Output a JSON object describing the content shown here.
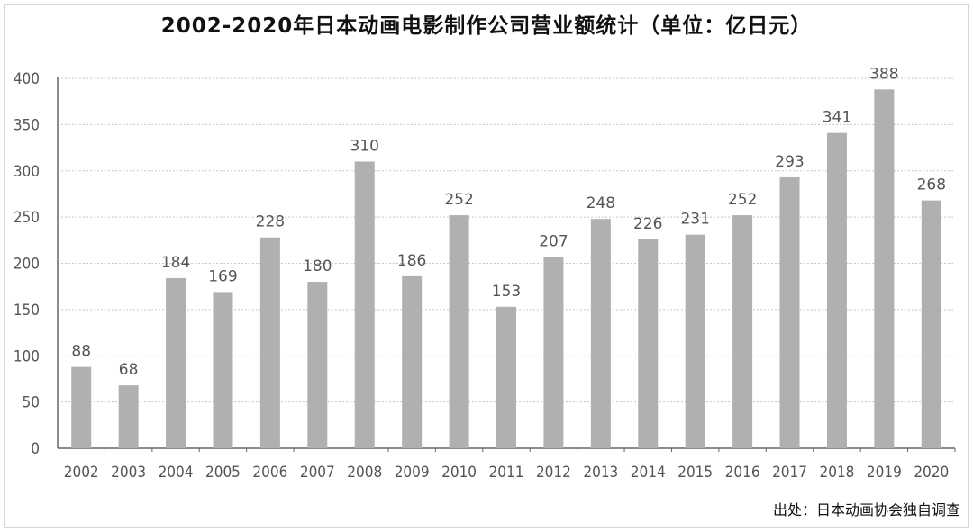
{
  "chart_data": {
    "type": "bar",
    "title": "2002-2020年日本动画电影制作公司营业额统计（单位：亿日元）",
    "source": "出处：日本动画协会独自调查",
    "categories": [
      "2002",
      "2003",
      "2004",
      "2005",
      "2006",
      "2007",
      "2008",
      "2009",
      "2010",
      "2011",
      "2012",
      "2013",
      "2014",
      "2015",
      "2016",
      "2017",
      "2018",
      "2019",
      "2020"
    ],
    "values": [
      88,
      68,
      184,
      169,
      228,
      180,
      310,
      186,
      252,
      153,
      207,
      248,
      226,
      231,
      252,
      293,
      341,
      388,
      268
    ],
    "value_labels": [
      "88",
      "68",
      "184",
      "169",
      "228",
      "180",
      "310",
      "186",
      "252",
      "153",
      "207",
      "248",
      "226",
      "231",
      "252",
      "293",
      "341",
      "388",
      "268"
    ],
    "ylim": [
      0,
      400
    ],
    "yticks": [
      "0",
      "50",
      "100",
      "150",
      "200",
      "250",
      "300",
      "350",
      "400"
    ],
    "grid": true,
    "colors": {
      "bar": "#b0b0b0",
      "grid": "#c8c8c8",
      "axis": "#666666"
    }
  }
}
